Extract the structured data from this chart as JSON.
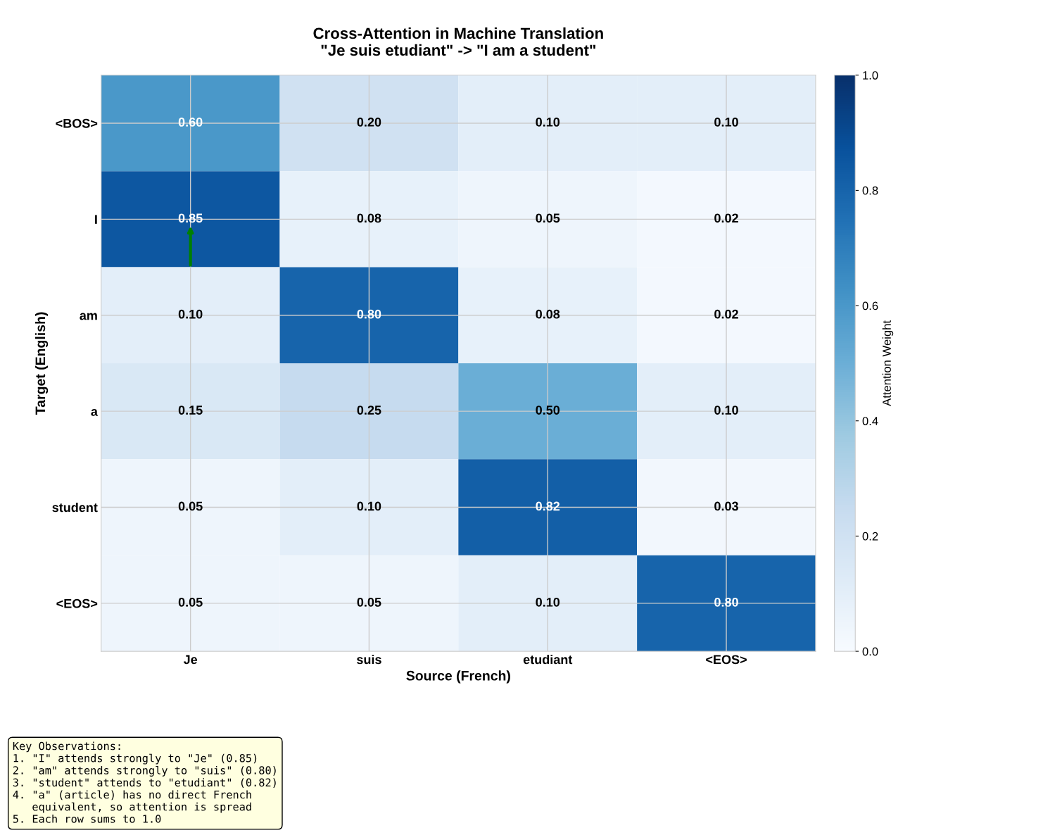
{
  "chart_data": {
    "type": "heatmap",
    "title": "Cross-Attention in Machine Translation\n\"Je suis etudiant\" -> \"I am a student\"",
    "xlabel": "Source (French)",
    "ylabel": "Target (English)",
    "clabel": "Attention Weight",
    "categories": [
      "Je",
      "suis",
      "etudiant",
      "<EOS>"
    ],
    "y_categories": [
      "<BOS>",
      "I",
      "am",
      "a",
      "student",
      "<EOS>"
    ],
    "cells": [
      [
        0.6,
        0.2,
        0.1,
        0.1
      ],
      [
        0.85,
        0.08,
        0.05,
        0.02
      ],
      [
        0.1,
        0.8,
        0.08,
        0.02
      ],
      [
        0.15,
        0.25,
        0.5,
        0.1
      ],
      [
        0.05,
        0.1,
        0.82,
        0.03
      ],
      [
        0.05,
        0.05,
        0.1,
        0.8
      ]
    ],
    "cell_labels": [
      [
        "0.60",
        "0.20",
        "0.10",
        "0.10"
      ],
      [
        "0.85",
        "0.08",
        "0.05",
        "0.02"
      ],
      [
        "0.10",
        "0.80",
        "0.08",
        "0.02"
      ],
      [
        "0.15",
        "0.25",
        "0.50",
        "0.10"
      ],
      [
        "0.05",
        "0.10",
        "0.82",
        "0.03"
      ],
      [
        "0.05",
        "0.05",
        "0.10",
        "0.80"
      ]
    ],
    "clim": [
      0,
      1
    ],
    "cticks": [
      {
        "value": 0,
        "label": "0.0"
      },
      {
        "value": 0.2,
        "label": "0.2"
      },
      {
        "value": 0.4,
        "label": "0.4"
      },
      {
        "value": 0.6,
        "label": "0.6"
      },
      {
        "value": 0.8,
        "label": "0.8"
      },
      {
        "value": 1,
        "label": "1.0"
      }
    ],
    "grid": true,
    "annotations": [
      "Key Observations:\n1. \"I\" attends strongly to \"Je\" (0.85)\n2. \"am\" attends strongly to \"suis\" (0.80)\n3. \"student\" attends to \"etudiant\" (0.82)\n4. \"a\" (article) has no direct French\n   equivalent, so attention is spread\n5. Each row sums to 1.0"
    ]
  }
}
